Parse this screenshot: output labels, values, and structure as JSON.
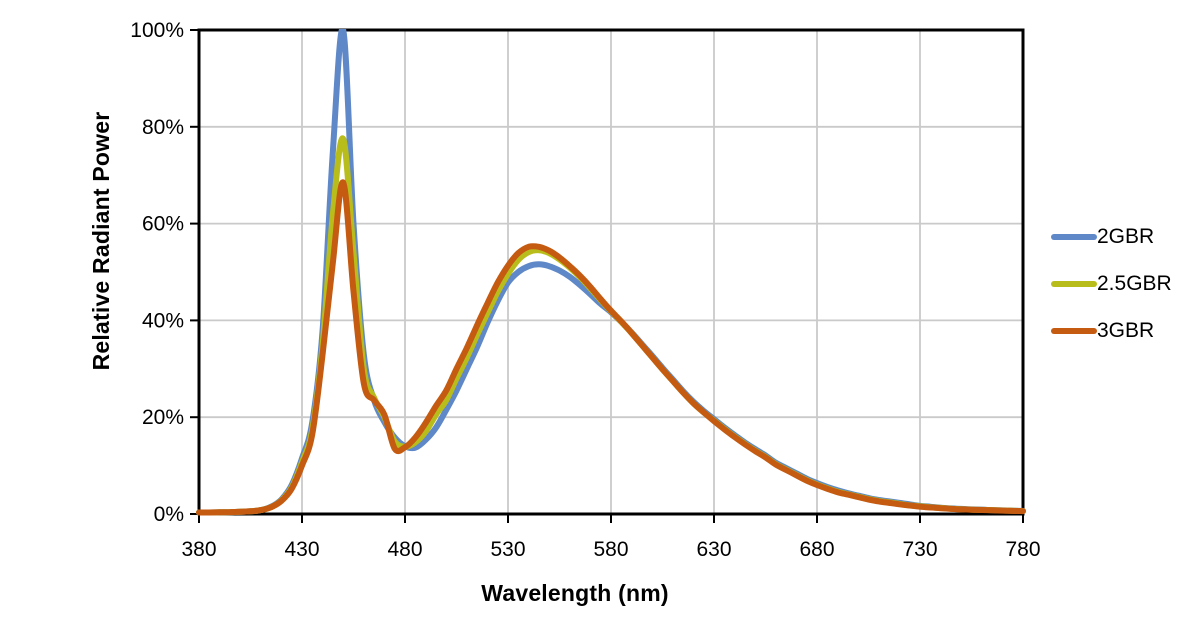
{
  "chart_data": {
    "type": "line",
    "title": "",
    "xlabel": "Wavelength (nm)",
    "ylabel": "Relative Radiant Power",
    "xlim": [
      380,
      780
    ],
    "ylim": [
      0,
      100
    ],
    "x_ticks": [
      380,
      430,
      480,
      530,
      580,
      630,
      680,
      730,
      780
    ],
    "y_ticks": [
      0,
      20,
      40,
      60,
      80,
      100
    ],
    "y_tick_labels": [
      "0%",
      "20%",
      "40%",
      "60%",
      "80%",
      "100%"
    ],
    "grid": true,
    "grid_color": "#CACACA",
    "axis_color": "#000000",
    "legend_position": "right",
    "x": [
      380,
      385,
      390,
      395,
      400,
      405,
      410,
      415,
      420,
      425,
      430,
      435,
      440,
      445,
      450,
      455,
      460,
      465,
      470,
      475,
      480,
      485,
      490,
      495,
      500,
      505,
      510,
      515,
      520,
      525,
      530,
      535,
      540,
      545,
      550,
      555,
      560,
      565,
      570,
      575,
      580,
      585,
      590,
      595,
      600,
      605,
      610,
      615,
      620,
      625,
      630,
      635,
      640,
      645,
      650,
      655,
      660,
      665,
      670,
      675,
      680,
      685,
      690,
      695,
      700,
      705,
      710,
      715,
      720,
      725,
      730,
      735,
      740,
      745,
      750,
      755,
      760,
      765,
      770,
      775,
      780
    ],
    "series": [
      {
        "name": "2GBR",
        "color": "#5E88C7",
        "values": [
          0.3,
          0.3,
          0.35,
          0.4,
          0.45,
          0.55,
          0.8,
          1.5,
          3,
          6,
          11.5,
          19,
          38,
          75,
          100,
          60,
          33,
          23.5,
          19,
          15.8,
          14,
          13.7,
          15.3,
          17.8,
          21.5,
          25.5,
          30,
          34.5,
          39.5,
          44,
          47.8,
          50,
          51.2,
          51.6,
          51.2,
          50.3,
          49,
          47.3,
          45.4,
          43.4,
          41.7,
          39.7,
          37.5,
          35.1,
          32.7,
          30.2,
          27.8,
          25.4,
          23.2,
          21.3,
          19.6,
          17.9,
          16.3,
          14.8,
          13.4,
          12.1,
          10.6,
          9.5,
          8.4,
          7.3,
          6.4,
          5.6,
          4.9,
          4.3,
          3.8,
          3.3,
          2.9,
          2.6,
          2.3,
          2,
          1.7,
          1.5,
          1.3,
          1.15,
          1.05,
          0.95,
          0.9,
          0.8,
          0.75,
          0.7,
          0.65
        ]
      },
      {
        "name": "2.5GBR",
        "color": "#B9BD1B",
        "values": [
          0.3,
          0.3,
          0.35,
          0.4,
          0.45,
          0.55,
          0.8,
          1.4,
          2.8,
          5.5,
          10.7,
          17.5,
          35,
          62,
          77.5,
          54,
          30,
          24,
          20,
          15,
          13.9,
          14.8,
          17,
          20.5,
          23.5,
          28,
          32.3,
          37,
          41.5,
          45.9,
          49.6,
          52.5,
          54.1,
          54.5,
          53.9,
          52.6,
          50.9,
          48.9,
          46.6,
          44.2,
          41.9,
          39.7,
          37.4,
          34.9,
          32.4,
          29.9,
          27.5,
          25.1,
          22.9,
          21,
          19.3,
          17.6,
          16,
          14.5,
          13.1,
          11.8,
          10.3,
          9.2,
          8.1,
          7,
          6.1,
          5.3,
          4.6,
          4.1,
          3.6,
          3.1,
          2.7,
          2.4,
          2.1,
          1.8,
          1.6,
          1.4,
          1.25,
          1.1,
          1,
          0.9,
          0.85,
          0.8,
          0.72,
          0.68,
          0.62
        ]
      },
      {
        "name": "3GBR",
        "color": "#C55A11",
        "values": [
          0.3,
          0.3,
          0.35,
          0.4,
          0.45,
          0.55,
          0.8,
          1.4,
          2.7,
          5.2,
          10,
          16.5,
          33,
          52,
          68.5,
          46,
          27,
          23.5,
          20.5,
          13.5,
          13.8,
          15.8,
          18.8,
          22.3,
          25.5,
          30,
          34.3,
          39,
          43.5,
          47.8,
          51.3,
          53.9,
          55.2,
          55.2,
          54.4,
          53,
          51.2,
          49.2,
          46.9,
          44.4,
          42,
          39.8,
          37.4,
          34.9,
          32.4,
          29.9,
          27.5,
          25.1,
          22.9,
          21,
          19.2,
          17.5,
          15.9,
          14.4,
          13,
          11.7,
          10.2,
          9.1,
          8,
          6.9,
          6,
          5.2,
          4.5,
          4,
          3.5,
          3,
          2.6,
          2.3,
          2,
          1.75,
          1.5,
          1.35,
          1.2,
          1.05,
          0.95,
          0.88,
          0.82,
          0.76,
          0.7,
          0.65,
          0.6
        ]
      }
    ]
  }
}
